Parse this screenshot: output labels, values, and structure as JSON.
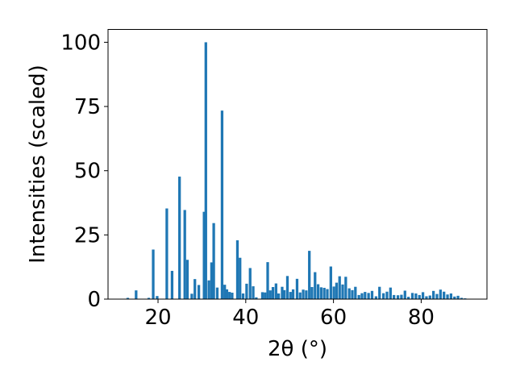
{
  "chart_data": {
    "type": "bar",
    "xlabel": "2θ (°)",
    "ylabel": "Intensities (scaled)",
    "xlim": [
      8.6,
      95
    ],
    "ylim": [
      0,
      105
    ],
    "xticks": [
      20,
      40,
      60,
      80
    ],
    "yticks": [
      0,
      25,
      50,
      75,
      100
    ],
    "bar_color": "#1f77b4",
    "bar_width": 0.6,
    "grid": false,
    "x": [
      13.1,
      15.0,
      17.9,
      18.9,
      19.8,
      22.0,
      23.2,
      24.9,
      26.1,
      26.7,
      27.7,
      28.4,
      29.3,
      30.5,
      30.9,
      31.6,
      32.2,
      32.7,
      33.5,
      34.6,
      35.2,
      35.7,
      36.3,
      36.9,
      38.1,
      38.7,
      39.4,
      40.2,
      41.0,
      41.7,
      42.4,
      43.8,
      44.4,
      45.0,
      45.6,
      46.2,
      46.9,
      47.5,
      48.3,
      48.8,
      49.5,
      50.2,
      50.8,
      51.7,
      52.4,
      53.1,
      53.8,
      54.5,
      55.1,
      55.8,
      56.5,
      57.2,
      57.9,
      58.6,
      59.4,
      60.1,
      60.7,
      61.4,
      62.1,
      62.8,
      63.6,
      64.3,
      65.0,
      65.8,
      66.5,
      67.2,
      68.0,
      68.8,
      69.7,
      70.5,
      71.4,
      72.2,
      73.0,
      73.8,
      74.7,
      75.5,
      76.3,
      77.1,
      78.0,
      78.8,
      79.6,
      80.4,
      81.2,
      82.0,
      82.8,
      83.6,
      84.4,
      85.2,
      86.0,
      86.8,
      87.6,
      88.4,
      89.2,
      90.0
    ],
    "values": [
      0.5,
      3.4,
      0.5,
      19.3,
      1.2,
      35.3,
      11.0,
      47.7,
      34.7,
      15.3,
      2.1,
      7.8,
      5.5,
      34.0,
      100.0,
      7.3,
      14.3,
      29.6,
      4.5,
      73.4,
      5.6,
      3.8,
      2.8,
      2.5,
      22.9,
      16.1,
      2.2,
      6.0,
      12.1,
      5.0,
      0.7,
      2.7,
      2.6,
      14.4,
      3.4,
      4.7,
      6.1,
      2.2,
      4.8,
      3.5,
      9.0,
      2.8,
      3.8,
      7.9,
      2.6,
      3.7,
      3.4,
      18.8,
      4.7,
      10.5,
      5.8,
      4.6,
      4.4,
      3.9,
      12.7,
      4.9,
      6.4,
      8.9,
      5.7,
      8.7,
      4.2,
      3.5,
      4.8,
      1.6,
      2.3,
      2.8,
      2.4,
      3.2,
      1.1,
      4.8,
      2.3,
      2.9,
      4.5,
      1.6,
      1.5,
      1.7,
      3.3,
      0.9,
      2.4,
      2.2,
      1.6,
      2.7,
      1.1,
      1.4,
      3.2,
      2.0,
      3.7,
      2.9,
      1.8,
      2.2,
      1.0,
      1.3,
      0.5,
      0.3
    ]
  }
}
